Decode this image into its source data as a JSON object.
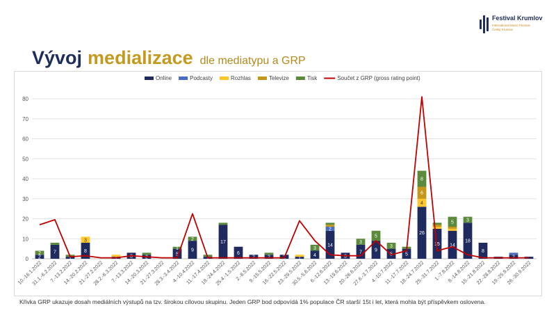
{
  "brand": {
    "name": "Festival Krumlov",
    "sub1": "International Music Festival",
    "sub2": "Český Krumlov"
  },
  "title": {
    "part1": "Vývoj",
    "part2": "medializace",
    "part3": "dle mediatypu a GRP"
  },
  "footnote": "Křivka GRP ukazuje dosah mediálních výstupů na tzv. širokou cílovou skupinu. Jeden GRP bod odpovídá 1% populace ČR starší 15t i let, která mohla být příspěvkem oslovena.",
  "colors": {
    "online": "#1f2a5e",
    "podcasty": "#4a6cc0",
    "rozhlas": "#ffc629",
    "televize": "#c4961a",
    "tisk": "#5b8a3c",
    "grp": "#c00000"
  },
  "chart_data": {
    "type": "bar",
    "stacked": true,
    "ylim": [
      0,
      80
    ],
    "yticks": [
      0,
      10,
      20,
      30,
      40,
      50,
      60,
      70,
      80
    ],
    "grid": true,
    "legend": "top",
    "categories": [
      "10.-16.1.2022",
      "31.1.-6.2.2022",
      "7.-13.2.2022",
      "14.-20.2.2022",
      "21.-27.2.2022",
      "28.2.-6.3.2022",
      "7.-13.3.2022",
      "14.-20.3.2022",
      "21.-27.3.2022",
      "28.3.-3.4.2022",
      "4.-10.4.2022",
      "11.-17.4.2022",
      "18.-24.4.2022",
      "25.4.-1.5.2022",
      "2.-8.5.2022",
      "9.-15.5.2022",
      "16.-22.5.2022",
      "23.-29.5.2022",
      "30.5.-5.6.2022",
      "6.-12.6.2022",
      "13.-19.6.2022",
      "20.-26.6.2022",
      "27.6.-3.7.2022",
      "4.-10.7.2022",
      "11.-17.7.2022",
      "18.-24.7.2022",
      "25.-31.7.2022",
      "1.-7.8.2022",
      "8.-14.8.2022",
      "15.-21.8.2022",
      "22.-28.8.2022",
      "19.-25.9.2022",
      "26.-30.9.2022"
    ],
    "series": [
      {
        "name": "Online",
        "values": [
          2,
          7,
          1,
          8,
          0,
          1,
          3,
          2,
          0,
          5,
          9,
          1,
          17,
          6,
          2,
          2,
          2,
          1,
          4,
          14,
          3,
          7,
          9,
          5,
          5,
          26,
          15,
          14,
          18,
          8,
          1,
          2,
          1
        ]
      },
      {
        "name": "Podcasty",
        "values": [
          0,
          0,
          0,
          0,
          0,
          0,
          0,
          0,
          0,
          0,
          0,
          0,
          0,
          0,
          0,
          0,
          0,
          0,
          0,
          2,
          0,
          0,
          0,
          0,
          0,
          0,
          0,
          0,
          0,
          0,
          0,
          1,
          0
        ]
      },
      {
        "name": "Rozhlas",
        "values": [
          0,
          0,
          0,
          3,
          0,
          1,
          0,
          0,
          0,
          0,
          0,
          0,
          0,
          0,
          0,
          0,
          0,
          1,
          0,
          0,
          0,
          0,
          0,
          0,
          0,
          4,
          1,
          1,
          0,
          0,
          0,
          0,
          0
        ]
      },
      {
        "name": "Televize",
        "values": [
          0,
          0,
          0,
          0,
          0,
          0,
          0,
          0,
          0,
          0,
          0,
          0,
          0,
          0,
          0,
          0,
          0,
          0,
          0,
          1,
          0,
          0,
          0,
          0,
          0,
          6,
          1,
          1,
          0,
          0,
          0,
          0,
          0
        ]
      },
      {
        "name": "Tisk",
        "values": [
          2,
          1,
          1,
          0,
          0,
          0,
          0,
          1,
          0,
          1,
          2,
          1,
          1,
          0,
          0,
          1,
          0,
          0,
          3,
          1,
          0,
          3,
          5,
          3,
          1,
          8,
          1,
          5,
          3,
          0,
          0,
          0,
          0
        ]
      }
    ],
    "value_labels": [
      [
        "2",
        "7",
        "1",
        "8",
        "",
        "1",
        "3",
        "2",
        "",
        "5",
        "9",
        "1",
        "17",
        "6",
        "2",
        "2",
        "2",
        "1",
        "4",
        "14",
        "3",
        "7",
        "9",
        "5",
        "5",
        "26",
        "15",
        "14",
        "18",
        "8",
        "",
        "2",
        ""
      ],
      [
        "",
        "",
        "",
        "",
        "",
        "",
        "",
        "",
        "",
        "",
        "",
        "",
        "",
        "",
        "",
        "",
        "",
        "",
        "",
        "2",
        "",
        "",
        "",
        "",
        "",
        "",
        "",
        "",
        "",
        "",
        "",
        "",
        ""
      ],
      [
        "",
        "",
        "",
        "3",
        "",
        "",
        "",
        "",
        "",
        "",
        "",
        "",
        "",
        "",
        "",
        "",
        "",
        "",
        "",
        "",
        "",
        "",
        "",
        "",
        "",
        "4",
        "",
        "",
        "",
        "",
        "",
        "",
        ""
      ],
      [
        "",
        "",
        "",
        "",
        "",
        "",
        "",
        "",
        "",
        "",
        "",
        "",
        "",
        "",
        "",
        "",
        "",
        "",
        "",
        "",
        "",
        "",
        "",
        "",
        "",
        "6",
        "",
        "",
        "",
        "",
        "",
        "",
        ""
      ],
      [
        "2",
        "",
        "",
        "",
        "",
        "",
        "",
        "",
        "",
        "1",
        "2",
        "",
        "",
        "",
        "",
        "",
        "",
        "",
        "3",
        "",
        "",
        "3",
        "5",
        "3",
        "",
        "8",
        "",
        "5",
        "3",
        "",
        "",
        "",
        ""
      ]
    ],
    "line": {
      "name": "Součet z GRP (gross rating point)",
      "values": [
        17,
        19.5,
        1,
        1.5,
        0.5,
        0.5,
        1.5,
        1,
        0.5,
        0.5,
        22.5,
        0.5,
        0.5,
        0.5,
        0.5,
        0.5,
        0.5,
        19,
        9,
        2,
        1.5,
        1.5,
        9,
        2,
        4,
        81,
        4,
        6,
        2,
        0.5,
        0.5,
        0.5,
        0.5
      ]
    }
  }
}
